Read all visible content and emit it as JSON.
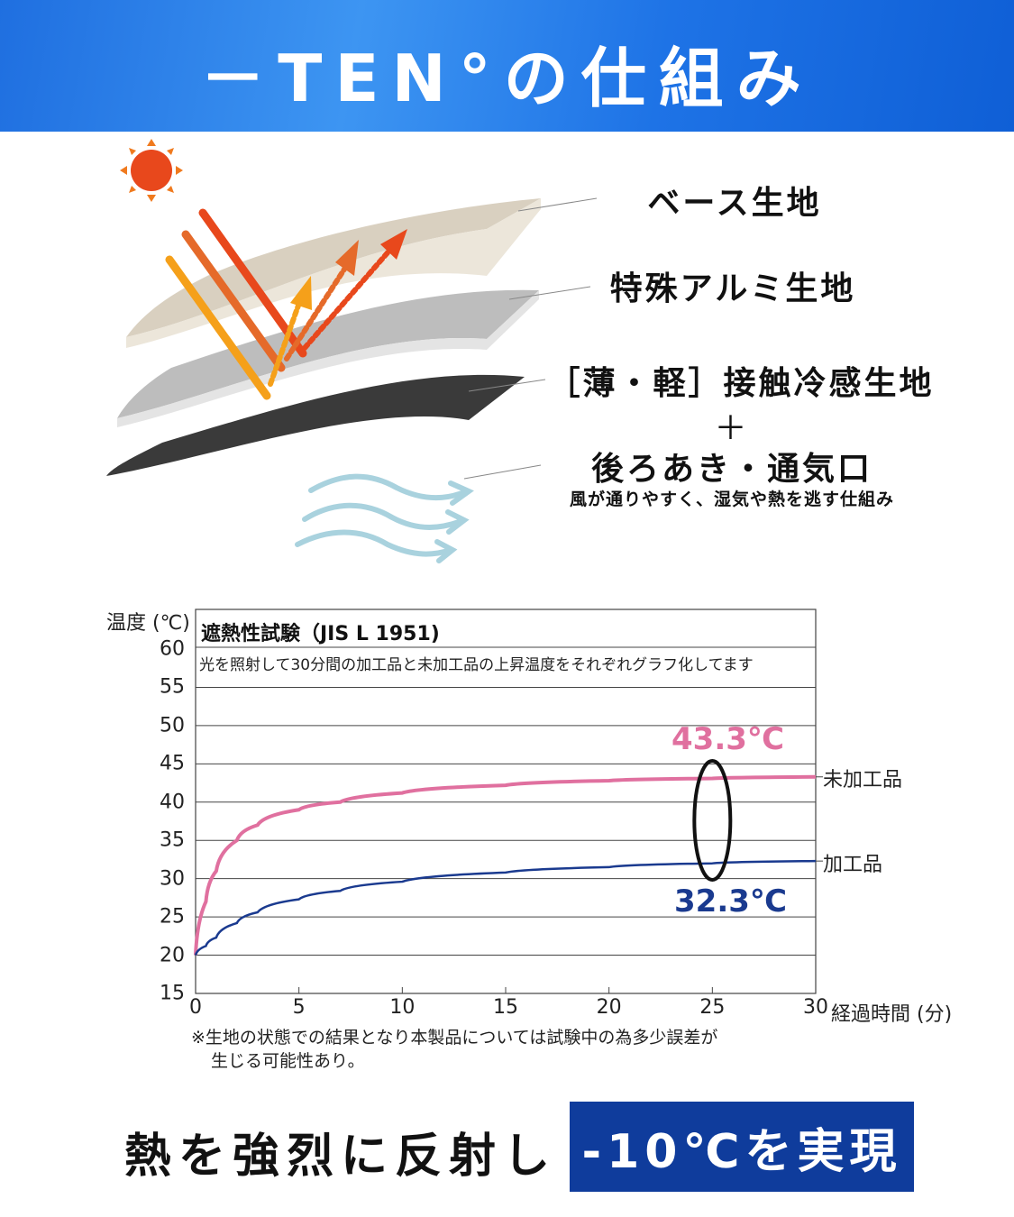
{
  "header": {
    "title": "－TEN°の仕組み",
    "background_color": "#1f6fe0"
  },
  "illustration": {
    "labels": {
      "base": "ベース生地",
      "aluminum": "特殊アルミ生地",
      "cooling": "［薄・軽］接触冷感生地",
      "plus": "＋",
      "vent": "後ろあき・通気口",
      "vent_desc": "風が通りやすく、湿気や熱を逃す仕組み"
    },
    "icons": [
      "sun-icon",
      "reflection-arrows-icon",
      "wind-icon"
    ]
  },
  "chart_data": {
    "type": "line",
    "title": "遮熱性試験（JIS L 1951)",
    "subtitle": "光を照射して30分間の加工品と未加工品の上昇温度をそれぞれグラフ化してます",
    "ylabel": "温度 (℃)",
    "xlabel": "経過時間 (分)",
    "xlim": [
      0,
      30
    ],
    "ylim": [
      15,
      60
    ],
    "xticks": [
      "0",
      "5",
      "10",
      "15",
      "20",
      "25",
      "30"
    ],
    "yticks": [
      "60",
      "55",
      "50",
      "45",
      "40",
      "35",
      "30",
      "25",
      "20",
      "15"
    ],
    "grid": true,
    "x": [
      0,
      0.5,
      1,
      2,
      3,
      5,
      7,
      10,
      15,
      20,
      25,
      30
    ],
    "series": [
      {
        "name": "未加工品",
        "color": "#e0709f",
        "values": [
          20,
          27,
          31,
          35,
          37,
          39,
          40,
          41.2,
          42.2,
          42.8,
          43.1,
          43.3
        ]
      },
      {
        "name": "加工品",
        "color": "#1a3a8f",
        "values": [
          20,
          21.2,
          22.3,
          24.2,
          25.6,
          27.3,
          28.4,
          29.6,
          30.8,
          31.5,
          32,
          32.3
        ]
      }
    ],
    "annotations": [
      {
        "text": "43.3℃",
        "color": "#e0709f"
      },
      {
        "text": "32.3℃",
        "color": "#1a3a8f"
      }
    ],
    "note_lines": [
      "※生地の状態での結果となり本製品については試験中の為多少誤差が",
      "生じる可能性あり。"
    ]
  },
  "footer": {
    "text": "熱を強烈に反射し",
    "highlight": "-10℃を実現",
    "highlight_color": "#0f3c9c"
  }
}
